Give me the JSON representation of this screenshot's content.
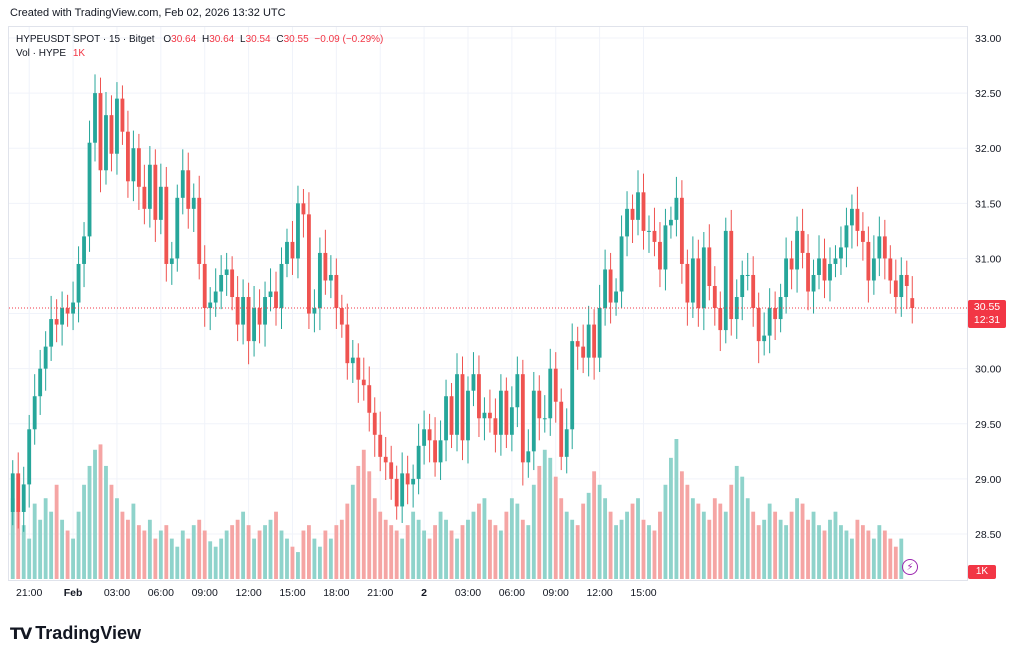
{
  "created": "Created with TradingView.com, Feb 02, 2026 13:32 UTC",
  "legend": {
    "symbol": "HYPEUSDT SPOT · 15 · Bitget",
    "o_label": "O",
    "o_value": "30.64",
    "h_label": "H",
    "h_value": "30.64",
    "l_label": "L",
    "l_value": "30.54",
    "c_label": "C",
    "c_value": "30.55",
    "change": "−0.09 (−0.29%)",
    "vol_label": "Vol · HYPE",
    "vol_value": "1K"
  },
  "price_tag": {
    "price": "30.55",
    "countdown": "12:31"
  },
  "volume_tag": "1K",
  "brand": "TradingView",
  "colors": {
    "up": "#26a69a",
    "down": "#ef5350",
    "up_vol": "#8fd3cb",
    "down_vol": "#f5a5a4",
    "last_price": "#f23645"
  },
  "chart_data": {
    "type": "candlestick",
    "title": "HYPEUSDT SPOT · 15 · Bitget",
    "interval": "15m",
    "yticks": [
      "28.50",
      "29.00",
      "29.50",
      "30.00",
      "30.50",
      "31.00",
      "31.50",
      "32.00",
      "32.50",
      "33.00"
    ],
    "ylim": [
      28.0,
      33.2
    ],
    "xticks": [
      "21:00",
      "Feb",
      "03:00",
      "06:00",
      "09:00",
      "12:00",
      "15:00",
      "18:00",
      "21:00",
      "2",
      "03:00",
      "06:00",
      "09:00",
      "12:00",
      "15:00"
    ],
    "xtick_bar_index": [
      3,
      11,
      19,
      27,
      35,
      43,
      51,
      59,
      67,
      75,
      83,
      91,
      99,
      107,
      115
    ],
    "last_price": 30.55,
    "close": [
      29.05,
      28.7,
      28.95,
      29.45,
      29.75,
      30.0,
      30.2,
      30.45,
      30.4,
      30.55,
      30.5,
      30.6,
      30.95,
      31.2,
      32.05,
      32.5,
      31.8,
      32.3,
      31.95,
      32.45,
      32.15,
      31.7,
      32.0,
      31.65,
      31.45,
      31.85,
      31.35,
      31.65,
      30.95,
      31.0,
      31.55,
      31.8,
      31.45,
      31.55,
      30.95,
      30.55,
      30.6,
      30.7,
      30.85,
      30.9,
      30.65,
      30.4,
      30.65,
      30.25,
      30.55,
      30.4,
      30.65,
      30.7,
      30.55,
      30.95,
      31.15,
      31.0,
      31.5,
      31.4,
      30.5,
      30.55,
      31.05,
      30.8,
      30.85,
      30.55,
      30.4,
      30.05,
      30.1,
      29.9,
      29.85,
      29.6,
      29.4,
      29.2,
      29.15,
      29.0,
      28.75,
      29.05,
      28.95,
      29.0,
      29.3,
      29.45,
      29.35,
      29.15,
      29.35,
      29.75,
      29.4,
      29.95,
      29.35,
      29.8,
      29.95,
      29.55,
      29.6,
      29.55,
      29.4,
      29.8,
      29.4,
      29.65,
      29.95,
      29.15,
      29.25,
      29.8,
      29.55,
      29.55,
      30.0,
      29.7,
      29.2,
      29.45,
      30.25,
      30.2,
      30.1,
      30.4,
      30.1,
      30.55,
      30.9,
      30.6,
      30.7,
      31.2,
      31.45,
      31.35,
      31.6,
      31.25,
      31.25,
      31.15,
      30.9,
      31.3,
      31.35,
      31.55,
      30.95,
      30.6,
      31.0,
      30.55,
      31.1,
      30.75,
      30.55,
      30.35,
      31.25,
      30.45,
      30.65,
      30.85,
      30.85,
      30.55,
      30.25,
      30.3,
      30.55,
      30.45,
      30.65,
      31.0,
      30.9,
      31.25,
      31.05,
      30.7,
      30.85,
      31.0,
      30.8,
      30.95,
      31.0,
      31.1,
      31.3,
      31.45,
      31.25,
      31.15,
      30.8,
      31.0,
      31.2,
      31.0,
      30.8,
      30.65,
      30.85,
      30.75,
      30.55
    ],
    "open": [
      28.7,
      29.05,
      28.7,
      28.95,
      29.45,
      29.75,
      30.0,
      30.2,
      30.45,
      30.4,
      30.55,
      30.5,
      30.6,
      30.95,
      31.2,
      32.05,
      32.5,
      31.8,
      32.3,
      31.95,
      32.45,
      32.15,
      31.7,
      32.0,
      31.65,
      31.45,
      31.85,
      31.35,
      31.65,
      30.95,
      31.0,
      31.55,
      31.8,
      31.45,
      31.55,
      30.95,
      30.55,
      30.6,
      30.7,
      30.85,
      30.9,
      30.65,
      30.4,
      30.65,
      30.25,
      30.55,
      30.4,
      30.65,
      30.7,
      30.55,
      30.95,
      31.15,
      31.0,
      31.5,
      31.4,
      30.5,
      30.55,
      31.05,
      30.8,
      30.85,
      30.55,
      30.4,
      30.05,
      30.1,
      29.9,
      29.85,
      29.6,
      29.4,
      29.2,
      29.15,
      29.0,
      28.75,
      29.05,
      28.95,
      29.0,
      29.3,
      29.45,
      29.35,
      29.15,
      29.35,
      29.75,
      29.4,
      29.95,
      29.35,
      29.8,
      29.95,
      29.55,
      29.6,
      29.55,
      29.4,
      29.8,
      29.4,
      29.65,
      29.95,
      29.15,
      29.25,
      29.8,
      29.55,
      29.55,
      30.0,
      29.7,
      29.2,
      29.45,
      30.25,
      30.2,
      30.1,
      30.4,
      30.1,
      30.55,
      30.9,
      30.6,
      30.7,
      31.2,
      31.45,
      31.35,
      31.6,
      31.25,
      31.25,
      31.15,
      30.9,
      31.3,
      31.35,
      31.55,
      30.95,
      30.6,
      31.0,
      30.55,
      31.1,
      30.75,
      30.55,
      30.35,
      31.25,
      30.45,
      30.65,
      30.85,
      30.85,
      30.55,
      30.25,
      30.3,
      30.55,
      30.45,
      30.65,
      31.0,
      30.9,
      31.25,
      31.05,
      30.7,
      30.85,
      31.0,
      30.8,
      30.95,
      31.0,
      31.1,
      31.3,
      31.45,
      31.25,
      31.15,
      30.8,
      31.0,
      31.2,
      31.0,
      30.8,
      30.65,
      30.85,
      30.64
    ],
    "volume_relative": [
      0.3,
      0.25,
      0.2,
      0.15,
      0.28,
      0.22,
      0.3,
      0.25,
      0.35,
      0.22,
      0.18,
      0.15,
      0.25,
      0.35,
      0.42,
      0.48,
      0.5,
      0.42,
      0.35,
      0.3,
      0.25,
      0.22,
      0.28,
      0.2,
      0.18,
      0.22,
      0.15,
      0.18,
      0.2,
      0.15,
      0.12,
      0.18,
      0.15,
      0.2,
      0.22,
      0.18,
      0.14,
      0.12,
      0.15,
      0.18,
      0.2,
      0.22,
      0.25,
      0.2,
      0.15,
      0.18,
      0.2,
      0.22,
      0.25,
      0.18,
      0.15,
      0.12,
      0.1,
      0.18,
      0.2,
      0.15,
      0.12,
      0.18,
      0.15,
      0.2,
      0.22,
      0.28,
      0.35,
      0.42,
      0.48,
      0.4,
      0.3,
      0.25,
      0.22,
      0.2,
      0.18,
      0.15,
      0.2,
      0.25,
      0.22,
      0.18,
      0.15,
      0.2,
      0.25,
      0.22,
      0.18,
      0.15,
      0.2,
      0.22,
      0.25,
      0.28,
      0.3,
      0.22,
      0.2,
      0.18,
      0.25,
      0.3,
      0.28,
      0.22,
      0.2,
      0.35,
      0.42,
      0.48,
      0.45,
      0.38,
      0.3,
      0.25,
      0.22,
      0.2,
      0.28,
      0.32,
      0.4,
      0.35,
      0.3,
      0.25,
      0.2,
      0.22,
      0.25,
      0.28,
      0.3,
      0.22,
      0.2,
      0.18,
      0.25,
      0.35,
      0.45,
      0.52,
      0.4,
      0.35,
      0.3,
      0.28,
      0.25,
      0.22,
      0.3,
      0.28,
      0.25,
      0.35,
      0.42,
      0.38,
      0.3,
      0.25,
      0.2,
      0.22,
      0.28,
      0.25,
      0.22,
      0.2,
      0.25,
      0.3,
      0.28,
      0.22,
      0.25,
      0.2,
      0.18,
      0.22,
      0.25,
      0.2,
      0.18,
      0.15,
      0.22,
      0.2,
      0.18,
      0.15,
      0.2,
      0.18,
      0.15,
      0.12,
      0.15
    ]
  }
}
